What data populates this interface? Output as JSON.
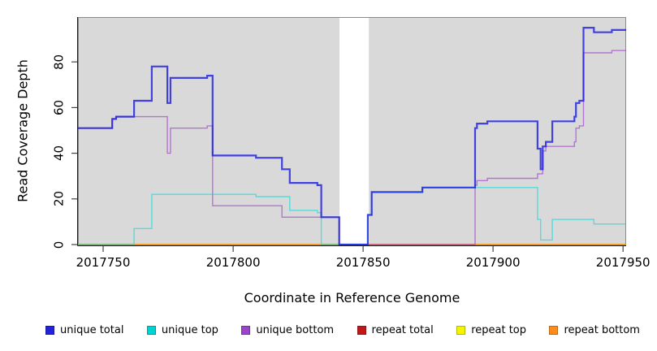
{
  "chart_data": {
    "type": "line",
    "subtype": "step-coverage",
    "title": "",
    "xlabel": "Coordinate in Reference Genome",
    "ylabel": "Read Coverage Depth",
    "xlim": [
      2017740.3,
      2017951.2
    ],
    "ylim": [
      0,
      100
    ],
    "x_ticks": [
      2017750,
      2017800,
      2017850,
      2017900,
      2017950
    ],
    "y_ticks": [
      0,
      20,
      40,
      60,
      80
    ],
    "grid": false,
    "plot_bg_color": "#d9d9d9",
    "box_color": "#8a8a8a",
    "axis_color": "#1a1a1a",
    "tick_color": "#444444",
    "gap_band": {
      "x0": 2017840.9,
      "x1": 2017852.2,
      "color": "#ffffff"
    },
    "legend_position": "bottom",
    "draw_order": [
      3,
      4,
      5,
      2,
      1,
      0
    ],
    "series": [
      {
        "name": "unique total",
        "color": "#1a1adf",
        "width": 2.2,
        "opacity": 0.8,
        "steps": [
          [
            2017740.3,
            51
          ],
          [
            2017753.5,
            55
          ],
          [
            2017755.0,
            56
          ],
          [
            2017761.9,
            63
          ],
          [
            2017768.7,
            78
          ],
          [
            2017774.7,
            62
          ],
          [
            2017775.9,
            73
          ],
          [
            2017790.0,
            74
          ],
          [
            2017792.1,
            39
          ],
          [
            2017808.8,
            38
          ],
          [
            2017818.8,
            33
          ],
          [
            2017821.8,
            27
          ],
          [
            2017832.4,
            26
          ],
          [
            2017833.9,
            12
          ],
          [
            2017840.8,
            0
          ],
          [
            2017851.8,
            13
          ],
          [
            2017853.3,
            23
          ],
          [
            2017872.8,
            25
          ],
          [
            2017893.1,
            51
          ],
          [
            2017893.8,
            53
          ],
          [
            2017897.8,
            54
          ],
          [
            2017917.1,
            42
          ],
          [
            2017918.3,
            33
          ],
          [
            2017919.1,
            43
          ],
          [
            2017920.3,
            45
          ],
          [
            2017922.8,
            54
          ],
          [
            2017931.3,
            56
          ],
          [
            2017931.9,
            62
          ],
          [
            2017933.2,
            63
          ],
          [
            2017934.8,
            95
          ],
          [
            2017938.8,
            93
          ],
          [
            2017945.7,
            94
          ],
          [
            2017951.2,
            94
          ]
        ]
      },
      {
        "name": "unique top",
        "color": "#00dada",
        "width": 1.4,
        "opacity": 0.6,
        "steps": [
          [
            2017740.3,
            0
          ],
          [
            2017761.9,
            7
          ],
          [
            2017768.7,
            22
          ],
          [
            2017808.8,
            21
          ],
          [
            2017821.8,
            15
          ],
          [
            2017832.4,
            14
          ],
          [
            2017833.9,
            0
          ],
          [
            2017851.8,
            13
          ],
          [
            2017853.3,
            23
          ],
          [
            2017872.8,
            25
          ],
          [
            2017917.1,
            11
          ],
          [
            2017918.3,
            2
          ],
          [
            2017922.8,
            11
          ],
          [
            2017938.8,
            9
          ],
          [
            2017951.2,
            9
          ]
        ]
      },
      {
        "name": "unique bottom",
        "color": "#9932cc",
        "width": 1.4,
        "opacity": 0.6,
        "steps": [
          [
            2017740.3,
            51
          ],
          [
            2017753.5,
            55
          ],
          [
            2017755.0,
            56
          ],
          [
            2017774.7,
            40
          ],
          [
            2017775.9,
            51
          ],
          [
            2017790.0,
            52
          ],
          [
            2017792.1,
            17
          ],
          [
            2017818.8,
            12
          ],
          [
            2017840.8,
            0
          ],
          [
            2017893.1,
            26
          ],
          [
            2017893.8,
            28
          ],
          [
            2017897.8,
            29
          ],
          [
            2017917.1,
            31
          ],
          [
            2017919.1,
            41
          ],
          [
            2017920.3,
            43
          ],
          [
            2017931.3,
            45
          ],
          [
            2017931.9,
            51
          ],
          [
            2017933.2,
            52
          ],
          [
            2017934.8,
            84
          ],
          [
            2017945.7,
            85
          ],
          [
            2017951.2,
            85
          ]
        ]
      },
      {
        "name": "repeat total",
        "color": "#cd1010",
        "width": 1.2,
        "opacity": 0.6,
        "value": 0,
        "zero_segments": [
          [
            2017740.3,
            2017840.9
          ],
          [
            2017852.2,
            2017951.2
          ]
        ]
      },
      {
        "name": "repeat top",
        "color": "#f0f000",
        "width": 1.2,
        "opacity": 0.6,
        "value": 0,
        "zero_segments": [
          [
            2017740.3,
            2017840.9
          ],
          [
            2017852.2,
            2017951.2
          ]
        ]
      },
      {
        "name": "repeat bottom",
        "color": "#ff8c00",
        "width": 1.6,
        "opacity": 0.85,
        "value": 0,
        "zero_segments": [
          [
            2017740.3,
            2017840.9
          ],
          [
            2017852.2,
            2017951.2
          ]
        ]
      }
    ],
    "legend": [
      {
        "label": "unique total",
        "color": "#2222dd"
      },
      {
        "label": "unique top",
        "color": "#00d2d2"
      },
      {
        "label": "unique bottom",
        "color": "#9a45c9"
      },
      {
        "label": "repeat total",
        "color": "#c01818"
      },
      {
        "label": "repeat top",
        "color": "#f5f500"
      },
      {
        "label": "repeat bottom",
        "color": "#ff8c1a"
      }
    ]
  },
  "axes": {
    "xlabel": "Coordinate in Reference Genome",
    "ylabel": "Read Coverage Depth"
  }
}
